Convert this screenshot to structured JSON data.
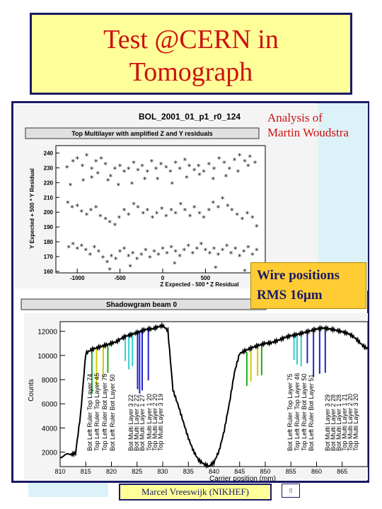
{
  "slide": {
    "title_line1": "Test @CERN in",
    "title_line2": "Tomograph",
    "analysis_line1": "Analysis of",
    "analysis_line2": "Martin Woudstra",
    "wire_line1": "Wire positions",
    "wire_line2": "RMS 16μm",
    "footer": "Marcel Vreeswijk (NIKHEF)",
    "page_number": "8"
  },
  "chart_data": [
    {
      "type": "scatter",
      "title": "BOL_2001_01_p1_r0_124",
      "subtitle": "Top Multilayer with amplified Z and Y residuals",
      "xlabel": "Z Expected - 500 * Z Residual",
      "ylabel": "Y Expected + 500 * Y Residual",
      "xlim": [
        -1250,
        1200
      ],
      "ylim": [
        159,
        245
      ],
      "x_ticks": [
        -1000,
        -500,
        0,
        500
      ],
      "y_ticks": [
        160,
        170,
        180,
        190,
        200,
        210,
        220,
        230,
        240
      ],
      "series": [
        {
          "x": [
            -1120,
            -1050,
            -1000,
            -940,
            -890,
            -830,
            -780,
            -720,
            -670,
            -610,
            -560,
            -500,
            -450,
            -400,
            -340,
            -290,
            -240,
            -180,
            -130,
            -80,
            -20,
            40,
            90,
            150,
            200,
            260,
            310,
            370,
            420,
            480,
            540,
            600,
            660,
            720,
            780,
            840,
            900,
            960,
            1020,
            1080,
            -1080,
            -930,
            -830,
            -760,
            -640,
            -520,
            -360,
            -210,
            -60,
            110,
            280,
            430,
            590,
            740,
            880,
            1000
          ],
          "y": [
            230,
            234,
            236,
            231,
            238,
            229,
            234,
            236,
            232,
            224,
            229,
            231,
            227,
            229,
            233,
            228,
            231,
            227,
            234,
            229,
            232,
            230,
            227,
            233,
            229,
            235,
            231,
            228,
            231,
            227,
            232,
            229,
            236,
            233,
            229,
            235,
            238,
            234,
            237,
            233,
            218,
            221,
            223,
            226,
            221,
            218,
            219,
            222,
            222,
            219,
            223,
            225,
            222,
            224,
            227,
            231
          ]
        },
        {
          "x": [
            -1110,
            -1060,
            -1000,
            -950,
            -890,
            -840,
            -780,
            -730,
            -670,
            -620,
            -560,
            -510,
            -450,
            -400,
            -340,
            -290,
            -230,
            -180,
            -120,
            -70,
            -10,
            40,
            100,
            150,
            210,
            260,
            320,
            370,
            430,
            480,
            540,
            590,
            650,
            700,
            760,
            810,
            870,
            930,
            990,
            1050,
            1100
          ],
          "y": [
            206,
            203,
            204,
            200,
            198,
            201,
            203,
            197,
            195,
            193,
            191,
            196,
            201,
            198,
            205,
            203,
            199,
            201,
            196,
            199,
            202,
            197,
            201,
            199,
            205,
            201,
            197,
            203,
            199,
            196,
            201,
            206,
            203,
            209,
            204,
            201,
            198,
            195,
            199,
            196,
            190
          ]
        },
        {
          "x": [
            -1100,
            -1050,
            -1000,
            -950,
            -900,
            -850,
            -800,
            -750,
            -700,
            -650,
            -600,
            -550,
            -500,
            -450,
            -400,
            -350,
            -300,
            -250,
            -200,
            -150,
            -100,
            -50,
            0,
            50,
            100,
            150,
            200,
            250,
            300,
            350,
            400,
            450,
            500,
            550,
            600,
            650,
            700,
            750,
            800,
            850,
            900,
            950,
            1000,
            1050,
            1100,
            -620,
            -380,
            140,
            620,
            960
          ],
          "y": [
            176,
            178,
            175,
            177,
            174,
            171,
            176,
            173,
            169,
            166,
            170,
            168,
            173,
            175,
            170,
            172,
            168,
            171,
            174,
            169,
            173,
            171,
            175,
            172,
            176,
            173,
            170,
            174,
            177,
            172,
            175,
            178,
            174,
            172,
            175,
            171,
            174,
            177,
            172,
            175,
            170,
            173,
            176,
            171,
            174,
            161,
            163,
            165,
            162,
            160
          ]
        }
      ]
    },
    {
      "type": "line",
      "title": "Shadowgram beam 0",
      "xlabel": "Carrier position (mm)",
      "ylabel": "Counts",
      "xlim": [
        810,
        870
      ],
      "ylim": [
        800,
        12800
      ],
      "x_ticks": [
        810,
        815,
        820,
        825,
        830,
        835,
        840,
        845,
        850,
        855,
        860,
        865,
        870
      ],
      "y_ticks": [
        2000,
        4000,
        6000,
        8000,
        10000,
        12000
      ],
      "series": [
        {
          "x": [
            810,
            812,
            813,
            814,
            815,
            816,
            817,
            818,
            819,
            820,
            821,
            822,
            823,
            824,
            825,
            826,
            827,
            828,
            829,
            830,
            831,
            832,
            833,
            834,
            835,
            836,
            837,
            838,
            839,
            840,
            841,
            842,
            843,
            844,
            845,
            846,
            847,
            848,
            849,
            850,
            851,
            852,
            853,
            854,
            855,
            856,
            857,
            858,
            859,
            860,
            861,
            862,
            863,
            864,
            865,
            866,
            867,
            868,
            869,
            870
          ],
          "y": [
            1700,
            1700,
            1750,
            5000,
            10000,
            10300,
            10500,
            10700,
            10900,
            11100,
            11300,
            11600,
            11800,
            11900,
            12000,
            12100,
            12150,
            12100,
            12200,
            12300,
            11900,
            7000,
            5800,
            4500,
            3200,
            2200,
            1500,
            1200,
            1000,
            1300,
            2200,
            3800,
            6000,
            8500,
            10000,
            10200,
            10400,
            10600,
            10800,
            11000,
            11100,
            11300,
            11500,
            11700,
            11800,
            11850,
            11900,
            11950,
            12000,
            12050,
            12100,
            12050,
            12000,
            11950,
            11900,
            11850,
            11700,
            11400,
            11000,
            10700
          ]
        }
      ],
      "annotations": [
        "Bot Left Ruler Top Layer 74",
        "Top Left Ruler Top Layer 45",
        "Top Left Ruler Bot Layer 75",
        "Bot Left Ruler Bot Layer 50",
        "Bot Multi Layer 3 22",
        "Bot Multi Layer 2 22",
        "Bot Multi Layer 1 27",
        "Top Multi Layer 1 20",
        "Top Multi Layer 2 20",
        "Top Multi Layer 3 19",
        "Bot Left Ruler Top Layer 75",
        "Top Left Ruler Top Layer 46",
        "Top Left Ruler Bot Layer 50",
        "Bot Left Ruler Bot Layer 51",
        "Bot Multi Layer 3 29",
        "Bot Multi Layer 2 28",
        "Bot Multi Layer 1 28",
        "Top Multi Layer 1 21",
        "Top Multi Layer 2 20",
        "Top Multi Layer 3 20"
      ],
      "wire_dips": [
        {
          "x": 816.2,
          "depth": 3500,
          "color": "#22aa22"
        },
        {
          "x": 817.1,
          "depth": 3000,
          "color": "#cccc00"
        },
        {
          "x": 818.4,
          "depth": 2600,
          "color": "#cccc00"
        },
        {
          "x": 819.3,
          "depth": 2400,
          "color": "#22aa22"
        },
        {
          "x": 822.7,
          "depth": 2200,
          "color": "#33cccc"
        },
        {
          "x": 823.4,
          "depth": 3000,
          "color": "#33cccc"
        },
        {
          "x": 824.1,
          "depth": 2800,
          "color": "#33cccc"
        },
        {
          "x": 825.1,
          "depth": 4800,
          "color": "#2222cc"
        },
        {
          "x": 825.5,
          "depth": 5200,
          "color": "#2222cc"
        },
        {
          "x": 826.0,
          "depth": 5000,
          "color": "#2222cc"
        },
        {
          "x": 827.2,
          "depth": 4200,
          "color": "#2222cc"
        },
        {
          "x": 846.4,
          "depth": 2800,
          "color": "#22aa22"
        },
        {
          "x": 847.2,
          "depth": 2600,
          "color": "#cccc00"
        },
        {
          "x": 848.5,
          "depth": 2400,
          "color": "#cccc00"
        },
        {
          "x": 849.3,
          "depth": 2500,
          "color": "#22aa22"
        },
        {
          "x": 855.6,
          "depth": 2200,
          "color": "#33cccc"
        },
        {
          "x": 856.2,
          "depth": 2600,
          "color": "#33cccc"
        },
        {
          "x": 857.0,
          "depth": 2800,
          "color": "#33cccc"
        },
        {
          "x": 858.2,
          "depth": 2600,
          "color": "#2222cc"
        },
        {
          "x": 859.4,
          "depth": 3800,
          "color": "#2222cc"
        },
        {
          "x": 860.6,
          "depth": 3600,
          "color": "#2222cc"
        },
        {
          "x": 861.7,
          "depth": 3500,
          "color": "#2222cc"
        }
      ]
    }
  ]
}
